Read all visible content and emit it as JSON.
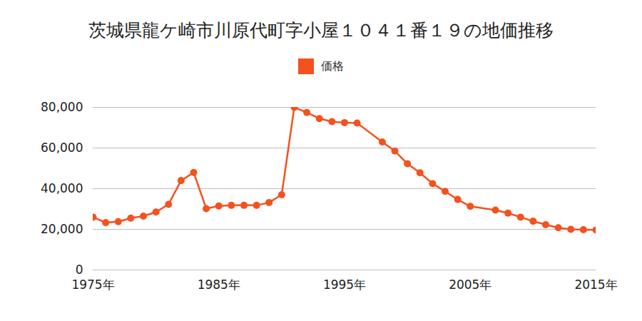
{
  "chart_data": {
    "type": "line",
    "title": "茨城県龍ケ崎市川原代町字小屋１０４１番１９の地価推移",
    "x": [
      1975,
      1976,
      1977,
      1978,
      1979,
      1980,
      1981,
      1982,
      1983,
      1984,
      1985,
      1986,
      1987,
      1988,
      1989,
      1990,
      1991,
      1992,
      1993,
      1994,
      1995,
      1996,
      1998,
      1999,
      2000,
      2001,
      2002,
      2003,
      2004,
      2005,
      2007,
      2008,
      2009,
      2010,
      2011,
      2012,
      2013,
      2014,
      2015
    ],
    "series": [
      {
        "name": "価格",
        "color": "#f4511e",
        "marker": "circle",
        "values": [
          26000,
          23300,
          23800,
          25500,
          26500,
          28500,
          32300,
          44000,
          48000,
          30200,
          31500,
          31800,
          31800,
          31800,
          33200,
          37000,
          80000,
          77500,
          74500,
          73000,
          72500,
          72300,
          63000,
          58500,
          52300,
          47800,
          42500,
          38700,
          34700,
          31300,
          29500,
          28000,
          26000,
          24000,
          22300,
          20800,
          20000,
          19800,
          19700
        ]
      }
    ],
    "xlim": [
      1975,
      2015
    ],
    "xticks": [
      {
        "value": 1975,
        "label": "1975年"
      },
      {
        "value": 1985,
        "label": "1985年"
      },
      {
        "value": 1995,
        "label": "1995年"
      },
      {
        "value": 2005,
        "label": "2005年"
      },
      {
        "value": 2015,
        "label": "2015年"
      }
    ],
    "ylim": [
      0,
      80000
    ],
    "yticks": [
      0,
      {
        "value": 20000,
        "label": "20,000"
      },
      {
        "value": 40000,
        "label": "40,000"
      },
      {
        "value": 60000,
        "label": "60,000"
      },
      {
        "value": 80000,
        "label": "80,000"
      }
    ],
    "grid": true,
    "legend": "top"
  }
}
